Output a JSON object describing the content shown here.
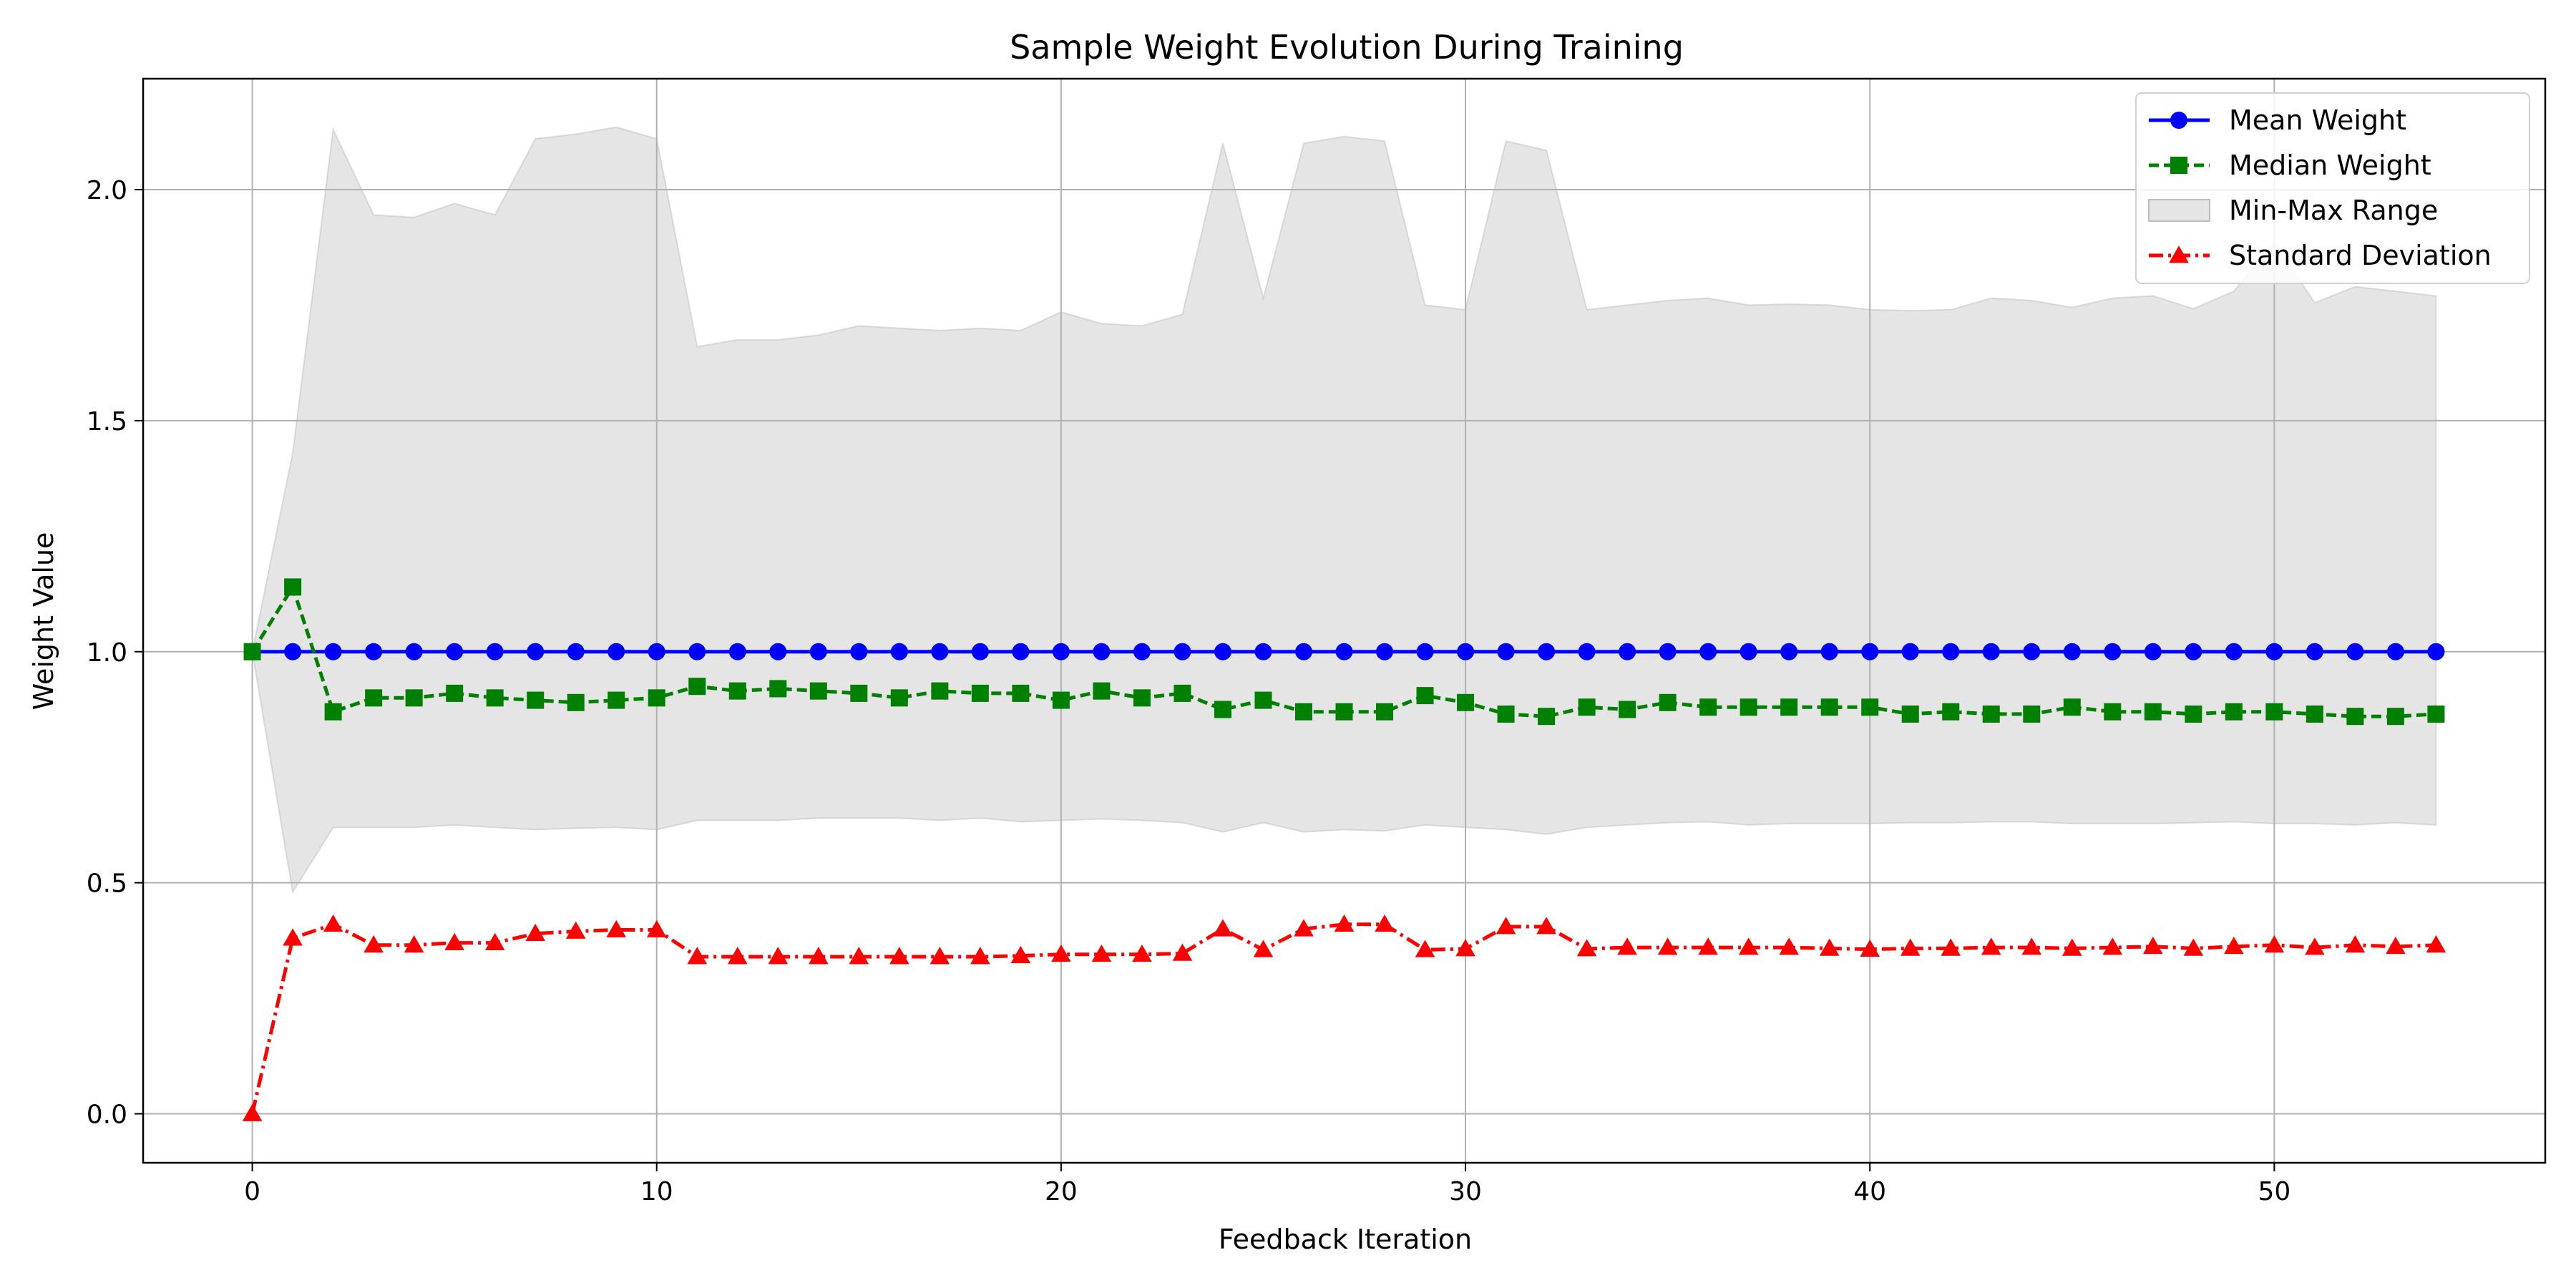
{
  "chart_data": {
    "type": "line",
    "title": "Sample Weight Evolution During Training",
    "xlabel": "Feedback Iteration",
    "ylabel": "Weight Value",
    "xlim": [
      -2.7,
      56.7
    ],
    "ylim": [
      -0.106,
      2.24
    ],
    "xticks": [
      0,
      10,
      20,
      30,
      40,
      50
    ],
    "yticks": [
      0.0,
      0.5,
      1.0,
      1.5,
      2.0
    ],
    "xtick_labels": [
      "0",
      "10",
      "20",
      "30",
      "40",
      "50"
    ],
    "ytick_labels": [
      "0.0",
      "0.5",
      "1.0",
      "1.5",
      "2.0"
    ],
    "grid": true,
    "legend_position": "top-right",
    "x": [
      0,
      1,
      2,
      3,
      4,
      5,
      6,
      7,
      8,
      9,
      10,
      11,
      12,
      13,
      14,
      15,
      16,
      17,
      18,
      19,
      20,
      21,
      22,
      23,
      24,
      25,
      26,
      27,
      28,
      29,
      30,
      31,
      32,
      33,
      34,
      35,
      36,
      37,
      38,
      39,
      40,
      41,
      42,
      43,
      44,
      45,
      46,
      47,
      48,
      49,
      50,
      51,
      52,
      53,
      54
    ],
    "series": [
      {
        "name": "Mean Weight",
        "kind": "line",
        "color": "#0000ff",
        "marker": "circle",
        "dash": "solid",
        "values": [
          1.0,
          1.0,
          1.0,
          1.0,
          1.0,
          1.0,
          1.0,
          1.0,
          1.0,
          1.0,
          1.0,
          1.0,
          1.0,
          1.0,
          1.0,
          1.0,
          1.0,
          1.0,
          1.0,
          1.0,
          1.0,
          1.0,
          1.0,
          1.0,
          1.0,
          1.0,
          1.0,
          1.0,
          1.0,
          1.0,
          1.0,
          1.0,
          1.0,
          1.0,
          1.0,
          1.0,
          1.0,
          1.0,
          1.0,
          1.0,
          1.0,
          1.0,
          1.0,
          1.0,
          1.0,
          1.0,
          1.0,
          1.0,
          1.0,
          1.0,
          1.0,
          1.0,
          1.0,
          1.0,
          1.0
        ]
      },
      {
        "name": "Median Weight",
        "kind": "line",
        "color": "#008000",
        "marker": "square",
        "dash": "dashed",
        "values": [
          1.0,
          1.14,
          0.87,
          0.9,
          0.9,
          0.91,
          0.9,
          0.895,
          0.89,
          0.895,
          0.9,
          0.925,
          0.915,
          0.92,
          0.915,
          0.91,
          0.9,
          0.915,
          0.91,
          0.91,
          0.895,
          0.915,
          0.9,
          0.91,
          0.875,
          0.895,
          0.87,
          0.87,
          0.87,
          0.905,
          0.89,
          0.865,
          0.86,
          0.88,
          0.875,
          0.89,
          0.88,
          0.88,
          0.88,
          0.88,
          0.88,
          0.865,
          0.87,
          0.865,
          0.865,
          0.88,
          0.87,
          0.87,
          0.865,
          0.87,
          0.87,
          0.865,
          0.86,
          0.86,
          0.865
        ]
      },
      {
        "name": "Min-Max Range",
        "kind": "band",
        "color": "#d3d3d3",
        "min": [
          1.0,
          0.48,
          0.62,
          0.62,
          0.62,
          0.625,
          0.62,
          0.615,
          0.618,
          0.62,
          0.615,
          0.635,
          0.635,
          0.635,
          0.64,
          0.64,
          0.64,
          0.635,
          0.64,
          0.632,
          0.635,
          0.638,
          0.635,
          0.63,
          0.61,
          0.63,
          0.61,
          0.615,
          0.612,
          0.625,
          0.62,
          0.615,
          0.605,
          0.62,
          0.625,
          0.63,
          0.632,
          0.625,
          0.628,
          0.628,
          0.628,
          0.63,
          0.63,
          0.632,
          0.632,
          0.628,
          0.628,
          0.628,
          0.63,
          0.632,
          0.628,
          0.628,
          0.625,
          0.63,
          0.625
        ],
        "max": [
          1.0,
          1.43,
          2.13,
          1.945,
          1.94,
          1.97,
          1.945,
          2.11,
          2.12,
          2.135,
          2.11,
          1.66,
          1.675,
          1.675,
          1.685,
          1.705,
          1.7,
          1.695,
          1.7,
          1.695,
          1.735,
          1.71,
          1.705,
          1.73,
          2.1,
          1.765,
          2.1,
          2.115,
          2.105,
          1.75,
          1.74,
          2.105,
          2.085,
          1.74,
          1.75,
          1.76,
          1.765,
          1.75,
          1.752,
          1.75,
          1.74,
          1.738,
          1.74,
          1.765,
          1.76,
          1.745,
          1.765,
          1.77,
          1.742,
          1.78,
          1.885,
          1.755,
          1.79,
          1.78,
          1.77
        ]
      },
      {
        "name": "Standard Deviation",
        "kind": "line",
        "color": "#ff0000",
        "marker": "triangle",
        "dash": "dashdot",
        "values": [
          0.0,
          0.38,
          0.41,
          0.365,
          0.365,
          0.37,
          0.37,
          0.39,
          0.395,
          0.398,
          0.398,
          0.34,
          0.34,
          0.34,
          0.34,
          0.34,
          0.34,
          0.34,
          0.34,
          0.342,
          0.345,
          0.345,
          0.345,
          0.347,
          0.4,
          0.355,
          0.4,
          0.41,
          0.41,
          0.355,
          0.357,
          0.405,
          0.405,
          0.357,
          0.36,
          0.36,
          0.36,
          0.36,
          0.36,
          0.358,
          0.356,
          0.358,
          0.358,
          0.36,
          0.36,
          0.358,
          0.36,
          0.362,
          0.358,
          0.362,
          0.365,
          0.36,
          0.365,
          0.362,
          0.365
        ]
      }
    ],
    "legend_order": [
      "Mean Weight",
      "Median Weight",
      "Min-Max Range",
      "Standard Deviation"
    ]
  }
}
